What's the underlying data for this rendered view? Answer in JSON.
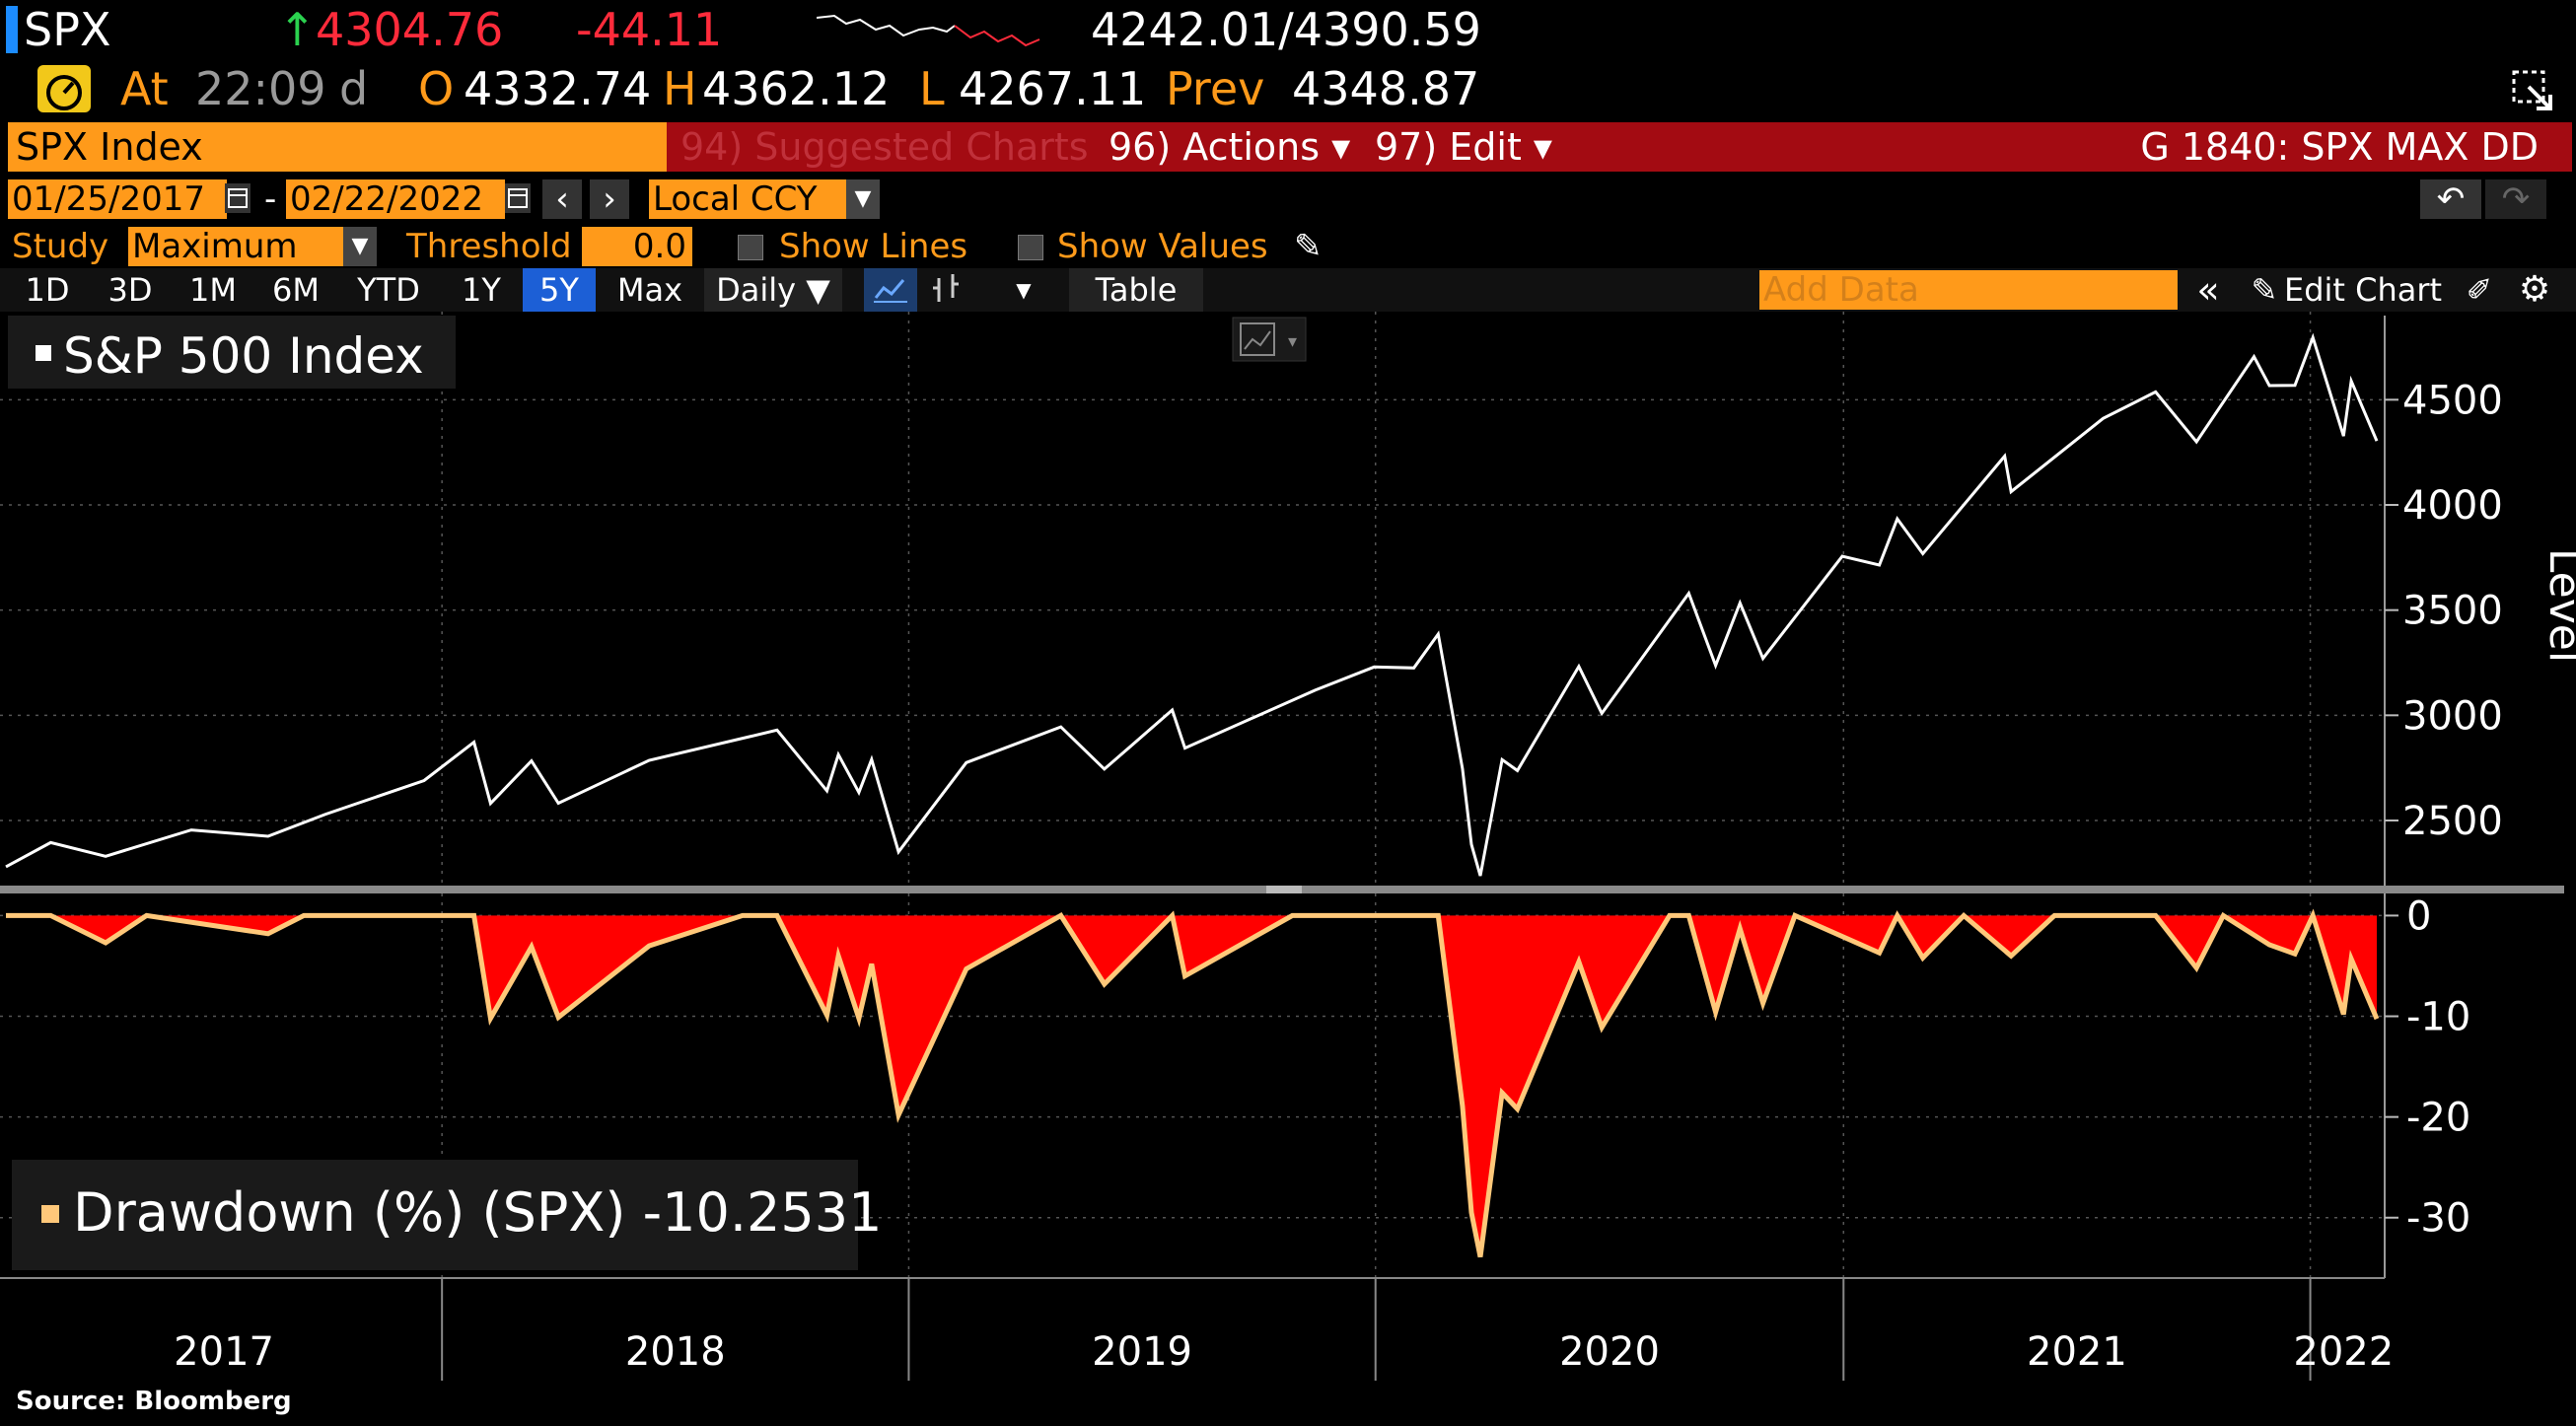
{
  "quote": {
    "ticker": "SPX",
    "last": "4304.76",
    "change": "-44.11",
    "range": "4242.01/4390.59",
    "at_label": "At",
    "time": "22:09",
    "d": "d",
    "o_label": "O",
    "open": "4332.74",
    "h_label": "H",
    "high": "4362.12",
    "l_label": "L",
    "low": "4267.11",
    "prev_label": "Prev",
    "prev": "4348.87"
  },
  "toolbar": {
    "security": "SPX Index",
    "suggested": "94) Suggested Charts",
    "actions": "96) Actions ▾",
    "edit": "97) Edit ▾",
    "chart_title": "G 1840: SPX MAX DD",
    "start_date": "01/25/2017",
    "dash": "-",
    "end_date": "02/22/2022",
    "currency": "Local CCY",
    "study_label": "Study",
    "study_value": "Maximum Dr",
    "threshold_label": "Threshold",
    "threshold_value": "0.0",
    "show_lines": "Show Lines",
    "show_values": "Show Values",
    "ranges": [
      "1D",
      "3D",
      "1M",
      "6M",
      "YTD",
      "1Y",
      "5Y",
      "Max"
    ],
    "active_range": "5Y",
    "frequency": "Daily ▼",
    "table": "Table",
    "add_data_placeholder": "Add Data",
    "edit_chart": "Edit Chart"
  },
  "colors": {
    "accent": "#ff9a1a",
    "header_red": "#a30b12",
    "drawdown_fill": "#ff0000",
    "drawdown_line": "#ffc87a",
    "price_line": "#ffffff",
    "active_tab": "#1c5fd6"
  },
  "footer": {
    "source": "Source: Bloomberg"
  },
  "chart_data": [
    {
      "type": "line",
      "legend": "S&P 500 Index",
      "ylabel": "Level",
      "ylim": [
        2200,
        4900
      ],
      "yticks": [
        2500,
        3000,
        3500,
        4000,
        4500
      ],
      "x_range": [
        "2017-01-25",
        "2022-02-22"
      ],
      "xticks": [
        "2017",
        "2018",
        "2019",
        "2020",
        "2021",
        "2022"
      ],
      "grid": true,
      "series": [
        {
          "name": "S&P 500 Index",
          "points": [
            [
              "2017-01-25",
              2280
            ],
            [
              "2017-03-01",
              2395
            ],
            [
              "2017-04-13",
              2330
            ],
            [
              "2017-06-19",
              2455
            ],
            [
              "2017-08-18",
              2425
            ],
            [
              "2017-10-02",
              2530
            ],
            [
              "2017-12-18",
              2690
            ],
            [
              "2018-01-26",
              2872
            ],
            [
              "2018-02-08",
              2581
            ],
            [
              "2018-03-12",
              2783
            ],
            [
              "2018-04-02",
              2582
            ],
            [
              "2018-06-12",
              2786
            ],
            [
              "2018-08-31",
              2901
            ],
            [
              "2018-09-20",
              2930
            ],
            [
              "2018-10-29",
              2641
            ],
            [
              "2018-11-07",
              2813
            ],
            [
              "2018-11-23",
              2633
            ],
            [
              "2018-12-03",
              2790
            ],
            [
              "2018-12-24",
              2351
            ],
            [
              "2019-02-15",
              2775
            ],
            [
              "2019-04-30",
              2945
            ],
            [
              "2019-06-03",
              2744
            ],
            [
              "2019-07-26",
              3025
            ],
            [
              "2019-08-05",
              2844
            ],
            [
              "2019-11-15",
              3120
            ],
            [
              "2019-12-31",
              3230
            ],
            [
              "2020-01-31",
              3225
            ],
            [
              "2020-02-19",
              3386
            ],
            [
              "2020-03-09",
              2746
            ],
            [
              "2020-03-16",
              2386
            ],
            [
              "2020-03-23",
              2237
            ],
            [
              "2020-04-09",
              2789
            ],
            [
              "2020-04-21",
              2737
            ],
            [
              "2020-06-08",
              3232
            ],
            [
              "2020-06-26",
              3009
            ],
            [
              "2020-09-02",
              3580
            ],
            [
              "2020-09-23",
              3237
            ],
            [
              "2020-10-12",
              3534
            ],
            [
              "2020-10-30",
              3270
            ],
            [
              "2020-12-31",
              3756
            ],
            [
              "2021-01-29",
              3714
            ],
            [
              "2021-02-12",
              3934
            ],
            [
              "2021-03-04",
              3768
            ],
            [
              "2021-05-07",
              4232
            ],
            [
              "2021-05-12",
              4063
            ],
            [
              "2021-07-23",
              4411
            ],
            [
              "2021-09-02",
              4537
            ],
            [
              "2021-10-04",
              4300
            ],
            [
              "2021-11-18",
              4705
            ],
            [
              "2021-11-30",
              4567
            ],
            [
              "2021-12-20",
              4568
            ],
            [
              "2022-01-03",
              4796
            ],
            [
              "2022-01-27",
              4327
            ],
            [
              "2022-02-02",
              4589
            ],
            [
              "2022-02-22",
              4304
            ]
          ]
        }
      ]
    },
    {
      "type": "area",
      "legend": "Drawdown (%) (SPX) -10.2531",
      "ylim": [
        -36,
        2
      ],
      "yticks": [
        0,
        -10,
        -20,
        -30
      ],
      "x_range": [
        "2017-01-25",
        "2022-02-22"
      ],
      "grid": true,
      "series": [
        {
          "name": "Drawdown (%) (SPX)",
          "points": [
            [
              "2017-01-25",
              0
            ],
            [
              "2017-03-01",
              0
            ],
            [
              "2017-04-13",
              -2.7
            ],
            [
              "2017-05-15",
              0
            ],
            [
              "2017-08-18",
              -1.8
            ],
            [
              "2017-09-15",
              0
            ],
            [
              "2018-01-26",
              0
            ],
            [
              "2018-02-08",
              -10.2
            ],
            [
              "2018-03-12",
              -3.1
            ],
            [
              "2018-04-02",
              -10.1
            ],
            [
              "2018-06-12",
              -3.0
            ],
            [
              "2018-08-24",
              0
            ],
            [
              "2018-09-20",
              0
            ],
            [
              "2018-10-29",
              -9.9
            ],
            [
              "2018-11-07",
              -4.0
            ],
            [
              "2018-11-23",
              -10.2
            ],
            [
              "2018-12-03",
              -4.8
            ],
            [
              "2018-12-24",
              -19.8
            ],
            [
              "2019-02-15",
              -5.3
            ],
            [
              "2019-04-30",
              0
            ],
            [
              "2019-06-03",
              -6.8
            ],
            [
              "2019-07-26",
              0
            ],
            [
              "2019-08-05",
              -6.0
            ],
            [
              "2019-10-28",
              0
            ],
            [
              "2020-02-19",
              0
            ],
            [
              "2020-03-09",
              -18.9
            ],
            [
              "2020-03-16",
              -29.5
            ],
            [
              "2020-03-23",
              -33.9
            ],
            [
              "2020-04-09",
              -17.6
            ],
            [
              "2020-04-21",
              -19.2
            ],
            [
              "2020-06-08",
              -4.6
            ],
            [
              "2020-06-26",
              -11.1
            ],
            [
              "2020-08-18",
              0
            ],
            [
              "2020-09-02",
              0
            ],
            [
              "2020-09-23",
              -9.6
            ],
            [
              "2020-10-12",
              -1.3
            ],
            [
              "2020-10-30",
              -8.7
            ],
            [
              "2020-11-24",
              0
            ],
            [
              "2021-01-29",
              -3.7
            ],
            [
              "2021-02-12",
              0
            ],
            [
              "2021-03-04",
              -4.2
            ],
            [
              "2021-04-05",
              0
            ],
            [
              "2021-05-12",
              -4.0
            ],
            [
              "2021-06-15",
              0
            ],
            [
              "2021-09-02",
              0
            ],
            [
              "2021-10-04",
              -5.2
            ],
            [
              "2021-10-25",
              0
            ],
            [
              "2021-11-30",
              -2.9
            ],
            [
              "2021-12-20",
              -3.8
            ],
            [
              "2022-01-03",
              0
            ],
            [
              "2022-01-27",
              -9.8
            ],
            [
              "2022-02-02",
              -4.3
            ],
            [
              "2022-02-22",
              -10.25
            ]
          ]
        }
      ]
    }
  ]
}
